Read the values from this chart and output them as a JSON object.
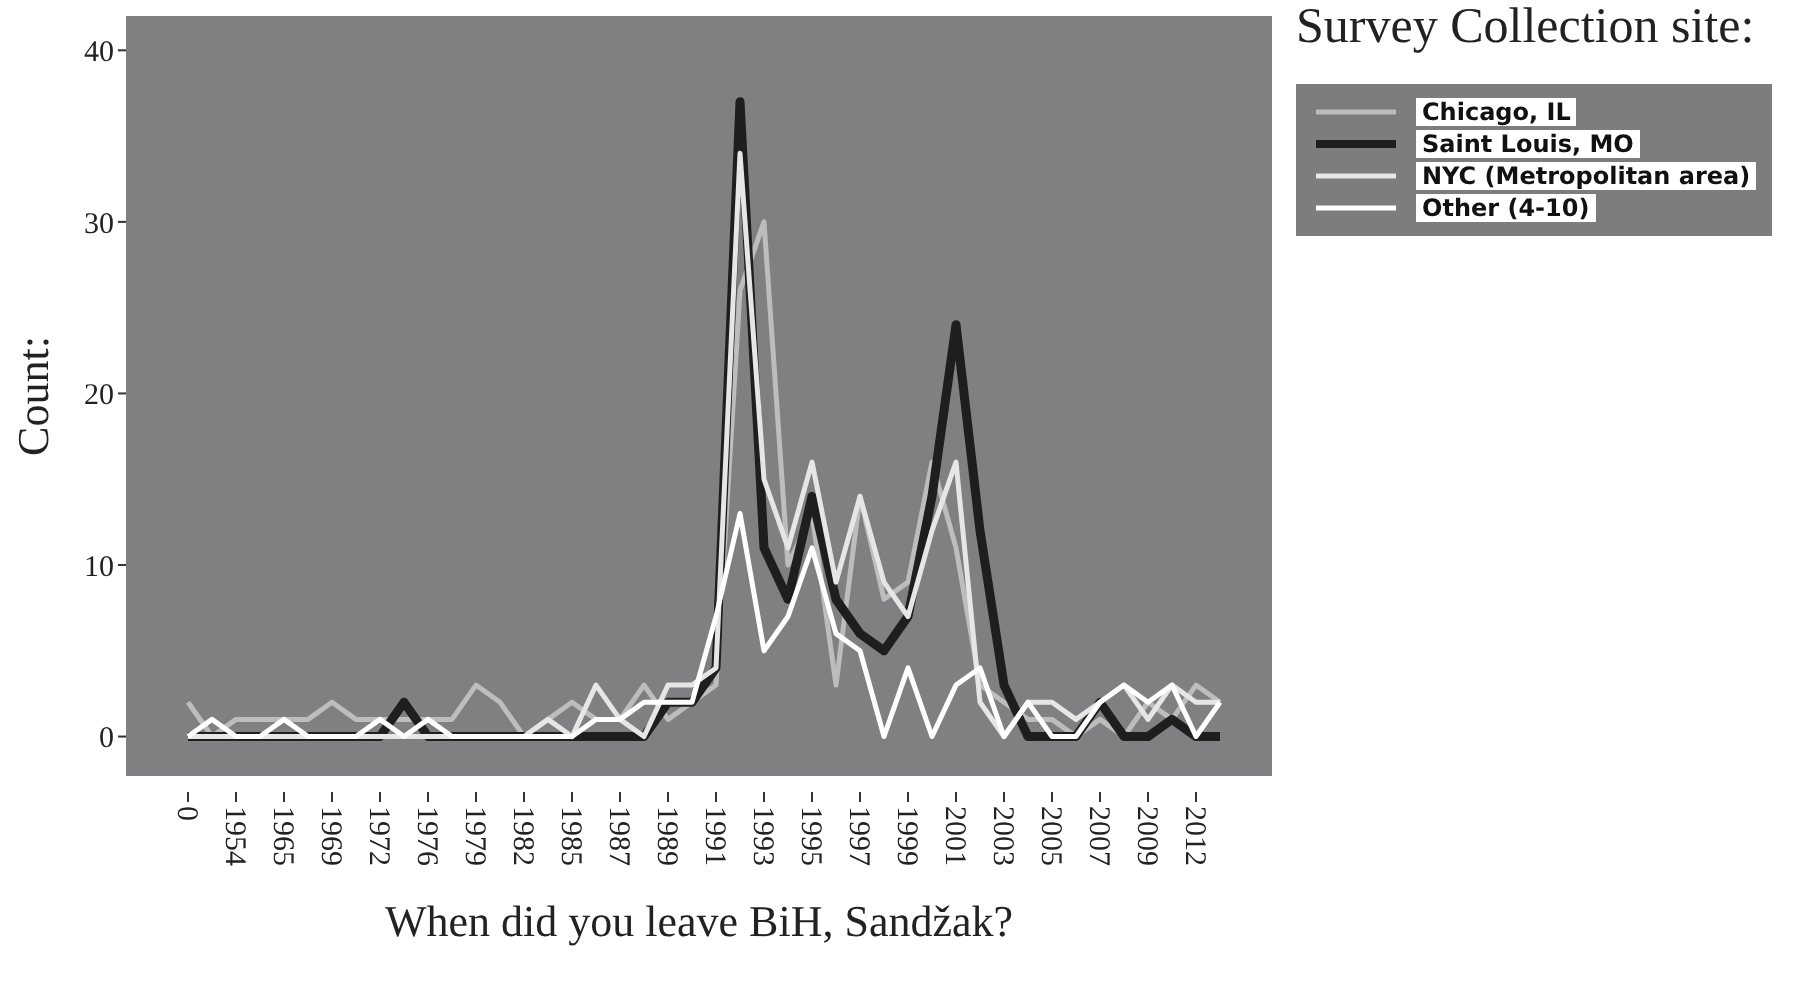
{
  "chart_data": {
    "type": "line",
    "xlabel": "When did you leave BiH, Sandžak?",
    "ylabel": "Count:",
    "legend_title": "Survey Collection site:",
    "legend": "right",
    "grid": false,
    "categories": [
      "0",
      null,
      "1954",
      null,
      "1965",
      null,
      "1969",
      null,
      "1972",
      null,
      "1976",
      null,
      "1979",
      null,
      "1982",
      null,
      "1985",
      null,
      "1987",
      null,
      "1989",
      null,
      "1991",
      null,
      "1993",
      null,
      "1995",
      null,
      "1997",
      null,
      "1999",
      null,
      "2001",
      null,
      "2003",
      null,
      "2005",
      null,
      "2007",
      null,
      "2009",
      null,
      "2012",
      null
    ],
    "ylim": [
      -2.3,
      42
    ],
    "yticks": [
      0,
      10,
      20,
      30,
      40
    ],
    "series": [
      {
        "name": "Chicago, IL",
        "color": "#bdbdbd",
        "values": [
          2,
          0,
          1,
          1,
          1,
          1,
          2,
          1,
          1,
          1,
          1,
          1,
          3,
          2,
          0,
          1,
          2,
          1,
          1,
          3,
          1,
          2,
          3,
          26,
          30,
          10,
          13,
          3,
          14,
          8,
          9,
          16,
          11,
          3,
          2,
          1,
          1,
          0,
          1,
          0,
          2,
          1,
          3,
          2
        ]
      },
      {
        "name": "Saint Louis, MO",
        "color": "#1e1e1e",
        "values": [
          0,
          0,
          0,
          0,
          0,
          0,
          0,
          0,
          0,
          2,
          0,
          0,
          0,
          0,
          0,
          0,
          0,
          0,
          0,
          0,
          2,
          2,
          4,
          37,
          11,
          8,
          14,
          8,
          6,
          5,
          7,
          14,
          24,
          12,
          3,
          0,
          0,
          0,
          2,
          0,
          0,
          1,
          0,
          0
        ]
      },
      {
        "name": "NYC (Metropolitan area)",
        "color": "#e6e6e6",
        "values": [
          0,
          0,
          0,
          0,
          0,
          0,
          0,
          0,
          0,
          0,
          0,
          0,
          0,
          0,
          0,
          1,
          0,
          3,
          1,
          0,
          3,
          3,
          4,
          34,
          15,
          11,
          16,
          9,
          14,
          9,
          7,
          12,
          16,
          2,
          0,
          2,
          2,
          1,
          2,
          3,
          1,
          3,
          2,
          2
        ]
      },
      {
        "name": "Other (4-10)",
        "color": "#ffffff",
        "values": [
          0,
          1,
          0,
          0,
          1,
          0,
          0,
          0,
          1,
          0,
          1,
          0,
          0,
          0,
          0,
          0,
          0,
          1,
          1,
          2,
          2,
          2,
          7,
          13,
          5,
          7,
          11,
          6,
          5,
          0,
          4,
          0,
          3,
          4,
          0,
          2,
          0,
          0,
          2,
          3,
          2,
          3,
          0,
          2
        ]
      }
    ]
  }
}
